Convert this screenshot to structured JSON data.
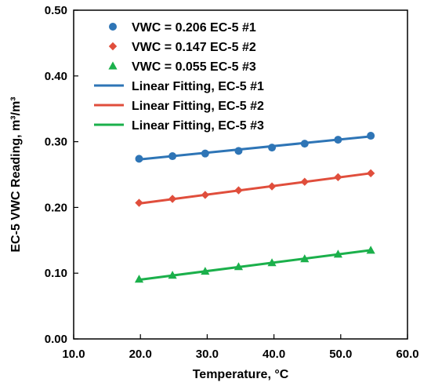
{
  "chart_data": {
    "type": "scatter",
    "xlabel": "Temperature, °C",
    "ylabel": "EC-5 VWC Reading, m³/m³",
    "xlim": [
      10.0,
      60.0
    ],
    "ylim": [
      0.0,
      0.5
    ],
    "x_ticks": [
      "10.0",
      "20.0",
      "30.0",
      "40.0",
      "50.0",
      "60.0"
    ],
    "y_ticks": [
      "0.00",
      "0.10",
      "0.20",
      "0.30",
      "0.40",
      "0.50"
    ],
    "grid": false,
    "legend_position": "top-left",
    "series": [
      {
        "name": "VWC = 0.206 EC-5 #1",
        "marker": "circle",
        "color": "#2e75b6",
        "x": [
          19.8,
          24.8,
          29.7,
          34.7,
          39.7,
          44.6,
          49.6,
          54.5
        ],
        "y": [
          0.274,
          0.278,
          0.282,
          0.286,
          0.291,
          0.297,
          0.303,
          0.309
        ]
      },
      {
        "name": "VWC = 0.147 EC-5 #2",
        "marker": "diamond",
        "color": "#e04e3c",
        "x": [
          19.8,
          24.8,
          29.7,
          34.7,
          39.7,
          44.6,
          49.6,
          54.5
        ],
        "y": [
          0.207,
          0.213,
          0.219,
          0.226,
          0.232,
          0.239,
          0.246,
          0.252
        ]
      },
      {
        "name": "VWC = 0.055 EC-5 #3",
        "marker": "triangle",
        "color": "#1bb04b",
        "x": [
          19.8,
          24.8,
          29.7,
          34.7,
          39.7,
          44.6,
          49.6,
          54.5
        ],
        "y": [
          0.091,
          0.097,
          0.103,
          0.11,
          0.116,
          0.122,
          0.129,
          0.135
        ]
      }
    ],
    "fits": [
      {
        "name": "Linear Fitting, EC-5 #1",
        "color": "#2e75b6",
        "x": [
          19.8,
          54.5
        ],
        "y": [
          0.273,
          0.308
        ]
      },
      {
        "name": "Linear Fitting, EC-5 #2",
        "color": "#e04e3c",
        "x": [
          19.8,
          54.5
        ],
        "y": [
          0.206,
          0.252
        ]
      },
      {
        "name": "Linear Fitting, EC-5 #3",
        "color": "#1bb04b",
        "x": [
          19.8,
          54.5
        ],
        "y": [
          0.09,
          0.135
        ]
      }
    ]
  }
}
